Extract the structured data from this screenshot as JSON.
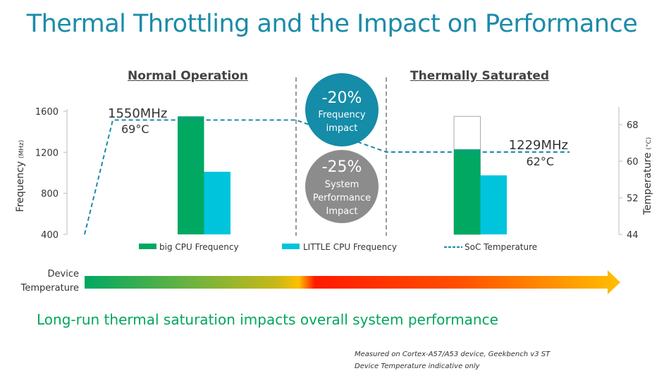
{
  "title": "Thermal Throttling and the Impact on Performance",
  "sections": {
    "normal": "Normal Operation",
    "saturated": "Thermally Saturated"
  },
  "chart_data": {
    "type": "bar",
    "categories": [
      "Normal Operation",
      "Thermally Saturated"
    ],
    "series": [
      {
        "name": "big CPU Frequency",
        "values": [
          1550,
          1229
        ],
        "color": "#00a862"
      },
      {
        "name": "LITTLE CPU Frequency",
        "values": [
          1010,
          975
        ],
        "color": "#00c4dc"
      }
    ],
    "reference_outline": {
      "category": "Thermally Saturated",
      "value": 1550
    },
    "line_series": {
      "name": "SoC Temperature",
      "axis": "right",
      "values": [
        44,
        69,
        69,
        62,
        62
      ],
      "color": "#1a8ba8",
      "style": "dashed"
    },
    "ylabel": "Frequency",
    "ylabel_unit": "(MHz)",
    "ylim": [
      400,
      1600
    ],
    "yticks": [
      "1600",
      "1200",
      "800",
      "400"
    ],
    "y2label": "Temperature",
    "y2label_unit": "(°C)",
    "y2lim": [
      44,
      68
    ],
    "y2ticks": [
      "68",
      "60",
      "52",
      "44"
    ],
    "annotations": {
      "normal_freq": "1550MHz",
      "normal_temp": "69°C",
      "saturated_freq": "1229MHz",
      "saturated_temp": "62°C"
    },
    "legend_position": "bottom"
  },
  "impacts": {
    "frequency": {
      "value": "-20%",
      "line1": "Frequency",
      "line2": "impact",
      "color": "#158ca8"
    },
    "system": {
      "value": "-25%",
      "line1": "System",
      "line2": "Performance",
      "line3": "Impact",
      "color": "#8c8c8c"
    }
  },
  "device_temperature": {
    "line1": "Device",
    "line2": "Temperature"
  },
  "tagline": "Long-run thermal saturation impacts overall system performance",
  "notes": [
    "Measured on Cortex-A57/A53 device, Geekbench v3 ST",
    "Device Temperature indicative only"
  ]
}
